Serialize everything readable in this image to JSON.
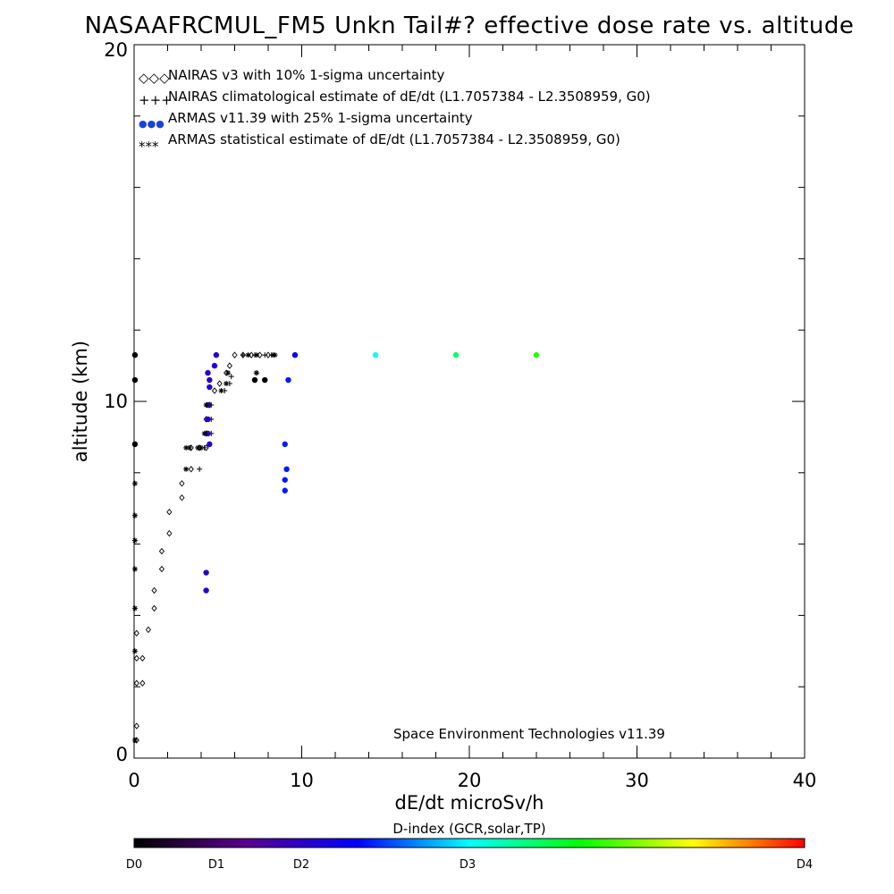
{
  "chart_data": {
    "type": "scatter",
    "title": "NASAAFRCMUL_FM5 Unkn Tail#? effective dose rate vs. altitude",
    "xlabel": "dE/dt microSv/h",
    "ylabel": "altitude (km)",
    "xlim": [
      0,
      40
    ],
    "ylim": [
      0,
      20
    ],
    "x_ticks": [
      "0",
      "10",
      "20",
      "30",
      "40"
    ],
    "y_ticks": [
      "0",
      "10",
      "20"
    ],
    "credit": "Space Environment Technologies v11.39",
    "legend_position": "top-left",
    "legend": [
      {
        "symbol": "◇◇◇",
        "text": "NAIRAS v3 with 10% 1-sigma uncertainty"
      },
      {
        "symbol": "+++",
        "text": "NAIRAS climatological estimate of dE/dt (L1.7057384 - L2.3508959, G0)"
      },
      {
        "symbol": "●●●",
        "text": "ARMAS v11.39 with 25% 1-sigma uncertainty"
      },
      {
        "symbol": "***",
        "text": "ARMAS statistical estimate of dE/dt (L1.7057384 - L2.3508959, G0)"
      }
    ],
    "colorbar": {
      "title": "D-index (GCR,solar,TP)",
      "labels": [
        "D0",
        "D1",
        "D2",
        "D3",
        "D4"
      ],
      "stops": [
        "#000000",
        "#5a0090",
        "#0000ff",
        "#00ffff",
        "#00ff00",
        "#ffff00",
        "#ff0000"
      ]
    },
    "series": [
      {
        "name": "NAIRAS v3 with 10% 1-sigma uncertainty",
        "marker": "diamond",
        "color": "#000000",
        "points": [
          [
            0.15,
            0.5
          ],
          [
            0.15,
            0.9
          ],
          [
            0.15,
            2.1
          ],
          [
            0.5,
            2.1
          ],
          [
            0.15,
            2.8
          ],
          [
            0.5,
            2.8
          ],
          [
            0.15,
            3.5
          ],
          [
            0.85,
            3.6
          ],
          [
            1.2,
            4.2
          ],
          [
            1.2,
            4.7
          ],
          [
            1.65,
            5.3
          ],
          [
            1.65,
            5.8
          ],
          [
            2.1,
            6.3
          ],
          [
            2.1,
            6.9
          ],
          [
            2.85,
            7.3
          ],
          [
            2.85,
            7.7
          ],
          [
            3.4,
            8.1
          ],
          [
            3.4,
            8.7
          ],
          [
            3.9,
            8.7
          ],
          [
            4.3,
            8.7
          ],
          [
            4.3,
            9.1
          ],
          [
            4.3,
            9.5
          ],
          [
            4.5,
            9.9
          ],
          [
            4.8,
            10.3
          ],
          [
            5.1,
            10.5
          ],
          [
            5.5,
            10.8
          ],
          [
            5.7,
            11.0
          ],
          [
            6.0,
            11.3
          ],
          [
            6.5,
            11.3
          ],
          [
            7.0,
            11.3
          ],
          [
            7.5,
            11.3
          ],
          [
            8.0,
            11.3
          ]
        ]
      },
      {
        "name": "NAIRAS climatological estimate of dE/dt (L1.7057384 - L2.3508959, G0)",
        "marker": "plus",
        "color": "#000000",
        "points": [
          [
            3.9,
            8.1
          ],
          [
            4.0,
            8.7
          ],
          [
            4.2,
            8.7
          ],
          [
            4.6,
            9.1
          ],
          [
            4.6,
            9.5
          ],
          [
            4.6,
            9.9
          ],
          [
            5.4,
            10.3
          ],
          [
            5.7,
            10.5
          ],
          [
            5.8,
            10.7
          ],
          [
            7.3,
            10.8
          ],
          [
            6.5,
            11.3
          ],
          [
            7.2,
            11.3
          ],
          [
            7.8,
            11.3
          ],
          [
            8.2,
            11.3
          ]
        ]
      },
      {
        "name": "ARMAS v11.39 with 25% 1-sigma uncertainty",
        "marker": "dot",
        "color": "#5a0090",
        "points": [
          [
            0.05,
            11.3,
            0.0
          ],
          [
            0.05,
            10.6,
            0.0
          ],
          [
            0.05,
            8.8,
            0.0
          ],
          [
            4.3,
            5.2,
            0.8
          ],
          [
            4.3,
            4.7,
            0.8
          ],
          [
            4.4,
            10.8,
            0.8
          ],
          [
            4.5,
            10.6,
            0.8
          ],
          [
            4.5,
            10.4,
            0.8
          ],
          [
            4.4,
            9.9,
            0.8
          ],
          [
            4.4,
            9.5,
            0.8
          ],
          [
            4.4,
            9.1,
            0.8
          ],
          [
            4.5,
            8.8,
            0.8
          ],
          [
            4.8,
            11.0,
            0.8
          ],
          [
            4.9,
            11.3,
            0.8
          ],
          [
            7.2,
            10.6,
            0.0
          ],
          [
            7.8,
            10.6,
            0.0
          ],
          [
            9.0,
            8.8,
            1.1
          ],
          [
            9.1,
            8.1,
            1.1
          ],
          [
            9.0,
            7.8,
            1.1
          ],
          [
            9.0,
            7.5,
            1.1
          ],
          [
            9.2,
            10.6,
            1.1
          ],
          [
            9.6,
            11.3,
            1.0
          ],
          [
            14.4,
            11.3,
            2.0
          ],
          [
            19.2,
            11.3,
            2.3
          ],
          [
            24.0,
            11.3,
            2.6
          ]
        ]
      },
      {
        "name": "ARMAS statistical estimate of dE/dt (L1.7057384 - L2.3508959, G0)",
        "marker": "asterisk",
        "color": "#000000",
        "points": [
          [
            0.05,
            0.5
          ],
          [
            0.05,
            3.0
          ],
          [
            0.05,
            4.2
          ],
          [
            0.05,
            5.3
          ],
          [
            0.05,
            6.1
          ],
          [
            0.05,
            6.8
          ],
          [
            0.05,
            7.7
          ],
          [
            3.1,
            8.1
          ],
          [
            3.1,
            8.7
          ],
          [
            3.3,
            8.7
          ],
          [
            3.8,
            8.7
          ],
          [
            4.0,
            8.7
          ],
          [
            4.2,
            9.1
          ],
          [
            4.3,
            9.9
          ],
          [
            5.2,
            10.3
          ],
          [
            5.5,
            10.5
          ],
          [
            5.6,
            10.8
          ],
          [
            7.3,
            10.8
          ],
          [
            6.8,
            11.3
          ],
          [
            7.3,
            11.3
          ],
          [
            8.3,
            11.3
          ],
          [
            8.4,
            11.3
          ]
        ]
      }
    ]
  }
}
